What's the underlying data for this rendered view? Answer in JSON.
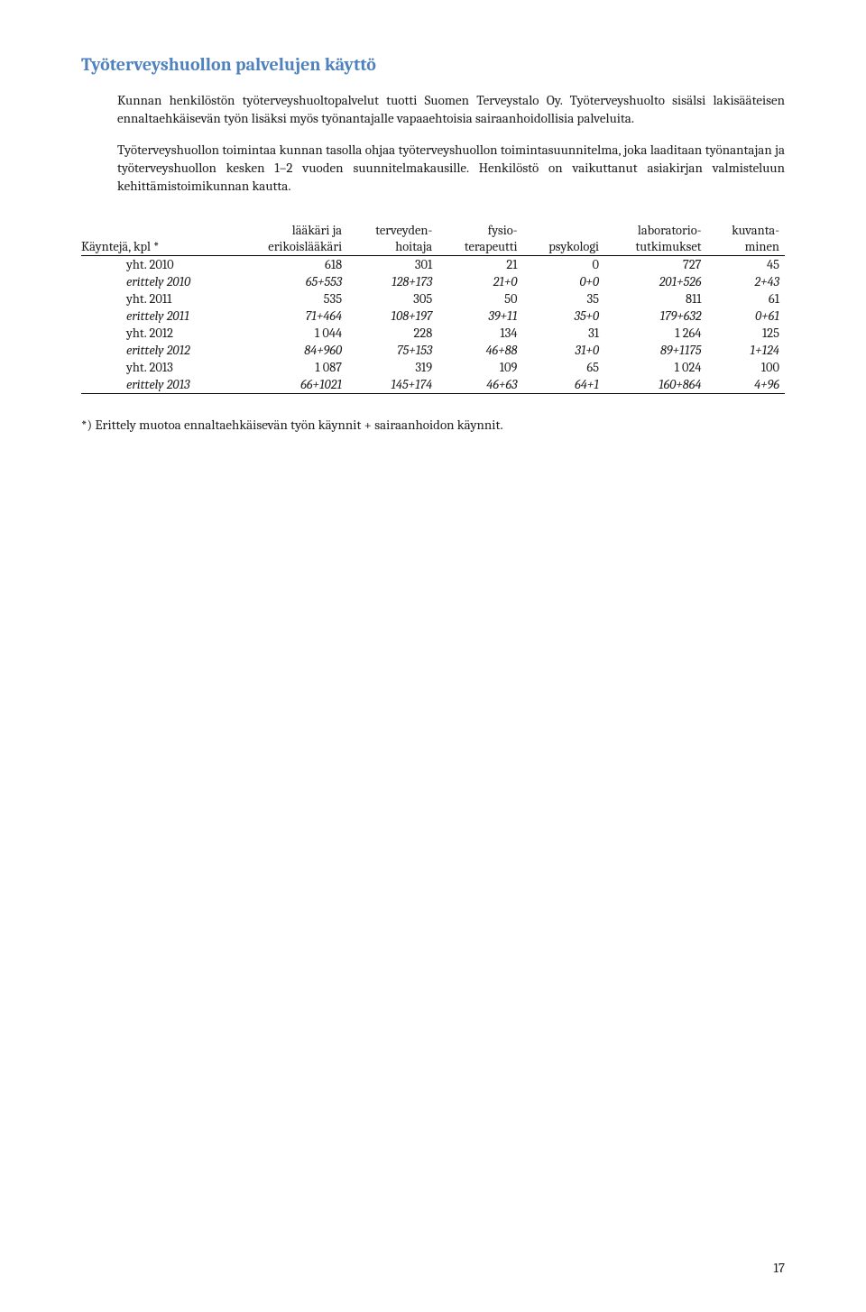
{
  "heading": "Työterveyshuollon palvelujen käyttö",
  "para1": "Kunnan henkilöstön työterveyshuoltopalvelut tuotti Suomen Terveystalo Oy. Työterveyshuolto sisälsi lakisääteisen ennaltaehkäisevän työn lisäksi myös työnantajalle vapaaehtoisia sairaanhoidollisia palveluita.",
  "para2": "Työterveyshuollon toimintaa kunnan tasolla ohjaa työterveyshuollon toimintasuunnitelma, joka laaditaan työnantajan ja työterveyshuollon kesken 1–2 vuoden suunnitelmakausille. Henkilöstö on vaikuttanut asiakirjan valmisteluun kehittämistoimikunnan kautta.",
  "table": {
    "columns": {
      "c0": "Käyntejä, kpl *",
      "c1a": "lääkäri ja",
      "c1b": "erikoislääkäri",
      "c2a": "terveyden-",
      "c2b": "hoitaja",
      "c3a": "fysio-",
      "c3b": "terapeutti",
      "c4": "psykologi",
      "c5a": "laboratorio-",
      "c5b": "tutkimukset",
      "c6a": "kuvanta-",
      "c6b": "minen"
    },
    "rows": [
      {
        "label": "yht. 2010",
        "v": [
          "618",
          "301",
          "21",
          "0",
          "727",
          "45"
        ],
        "italic": false
      },
      {
        "label": "erittely 2010",
        "v": [
          "65+553",
          "128+173",
          "21+0",
          "0+0",
          "201+526",
          "2+43"
        ],
        "italic": true
      },
      {
        "label": "yht. 2011",
        "v": [
          "535",
          "305",
          "50",
          "35",
          "811",
          "61"
        ],
        "italic": false
      },
      {
        "label": "erittely 2011",
        "v": [
          "71+464",
          "108+197",
          "39+11",
          "35+0",
          "179+632",
          "0+61"
        ],
        "italic": true
      },
      {
        "label": "yht. 2012",
        "v": [
          "1 044",
          "228",
          "134",
          "31",
          "1 264",
          "125"
        ],
        "italic": false
      },
      {
        "label": "erittely 2012",
        "v": [
          "84+960",
          "75+153",
          "46+88",
          "31+0",
          "89+1175",
          "1+124"
        ],
        "italic": true
      },
      {
        "label": "yht. 2013",
        "v": [
          "1 087",
          "319",
          "109",
          "65",
          "1 024",
          "100"
        ],
        "italic": false
      },
      {
        "label": "erittely 2013",
        "v": [
          "66+1021",
          "145+174",
          "46+63",
          "64+1",
          "160+864",
          "4+96"
        ],
        "italic": true
      }
    ]
  },
  "footnote": "*) Erittely muotoa ennaltaehkäisevän työn käynnit + sairaanhoidon käynnit.",
  "pagenum": "17"
}
